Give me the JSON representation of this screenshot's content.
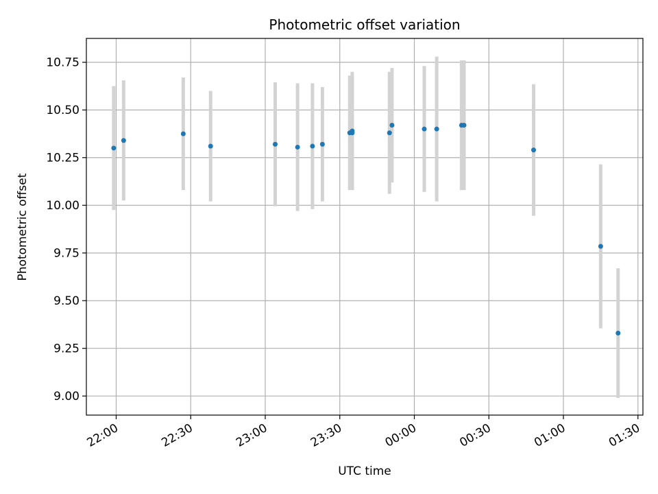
{
  "chart_data": {
    "type": "scatter",
    "title": "Photometric offset variation",
    "xlabel": "UTC time",
    "ylabel": "Photometric offset",
    "x_ticks": [
      "22:00",
      "22:30",
      "23:00",
      "23:30",
      "00:00",
      "00:30",
      "01:00",
      "01:30"
    ],
    "y_ticks": [
      "9.00",
      "9.25",
      "9.50",
      "9.75",
      "10.00",
      "10.25",
      "10.50",
      "10.75"
    ],
    "ylim": [
      8.9,
      10.875
    ],
    "xlim": [
      "21:48",
      "01:32"
    ],
    "grid": true,
    "point_color": "#1f77b4",
    "errorbar_color": "#d3d3d3",
    "points": [
      {
        "t": "21:59",
        "y": 10.3,
        "err": 0.325
      },
      {
        "t": "22:03",
        "y": 10.34,
        "err": 0.315
      },
      {
        "t": "22:27",
        "y": 10.375,
        "err": 0.295
      },
      {
        "t": "22:38",
        "y": 10.31,
        "err": 0.29
      },
      {
        "t": "23:04",
        "y": 10.32,
        "err": 0.325
      },
      {
        "t": "23:13",
        "y": 10.305,
        "err": 0.335
      },
      {
        "t": "23:19",
        "y": 10.31,
        "err": 0.33
      },
      {
        "t": "23:23",
        "y": 10.32,
        "err": 0.3
      },
      {
        "t": "23:34",
        "y": 10.38,
        "err": 0.3
      },
      {
        "t": "23:35",
        "y": 10.39,
        "err": 0.31
      },
      {
        "t": "23:35",
        "y": 10.38,
        "err": 0.3
      },
      {
        "t": "23:50",
        "y": 10.38,
        "err": 0.32
      },
      {
        "t": "23:51",
        "y": 10.42,
        "err": 0.3
      },
      {
        "t": "00:04",
        "y": 10.4,
        "err": 0.33
      },
      {
        "t": "00:09",
        "y": 10.4,
        "err": 0.38
      },
      {
        "t": "00:19",
        "y": 10.42,
        "err": 0.34
      },
      {
        "t": "00:20",
        "y": 10.42,
        "err": 0.34
      },
      {
        "t": "00:48",
        "y": 10.29,
        "err": 0.345
      },
      {
        "t": "01:15",
        "y": 9.785,
        "err": 0.43
      },
      {
        "t": "01:22",
        "y": 9.33,
        "err": 0.34
      }
    ]
  }
}
